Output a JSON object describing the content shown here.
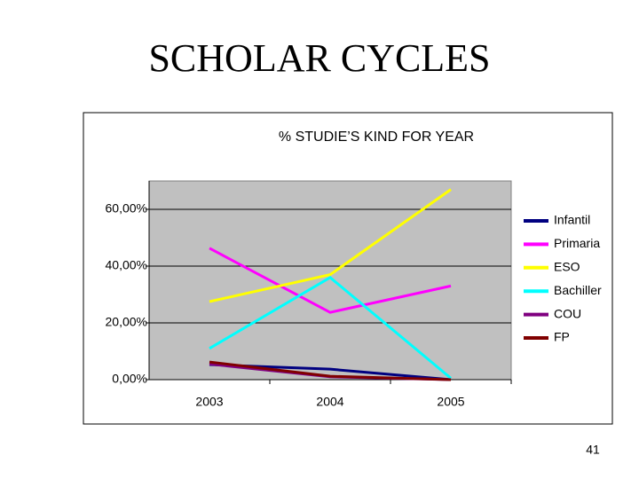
{
  "title": "SCHOLAR CYCLES",
  "page_number": "41",
  "chart_data": {
    "type": "line",
    "title": "% STUDIE’S KIND FOR YEAR",
    "categories": [
      "2003",
      "2004",
      "2005"
    ],
    "series": [
      {
        "name": "Infantil",
        "color": "#000080",
        "values": [
          5.3,
          3.7,
          0
        ]
      },
      {
        "name": "Primaria",
        "color": "#ff00ff",
        "values": [
          46.3,
          23.7,
          33
        ]
      },
      {
        "name": "ESO",
        "color": "#ffff00",
        "values": [
          27.5,
          37,
          67
        ]
      },
      {
        "name": "Bachiller",
        "color": "#00ffff",
        "values": [
          11,
          36,
          0.5
        ]
      },
      {
        "name": "COU",
        "color": "#800080",
        "values": [
          5.5,
          1,
          0
        ]
      },
      {
        "name": "FP",
        "color": "#800000",
        "values": [
          6.2,
          1.2,
          0
        ]
      }
    ],
    "ylim": [
      0,
      70
    ],
    "yticks": [
      {
        "value": 0,
        "label": "0,00%"
      },
      {
        "value": 20,
        "label": "20,00%"
      },
      {
        "value": 40,
        "label": "40,00%"
      },
      {
        "value": 60,
        "label": "60,00%"
      }
    ],
    "grid": true,
    "legend": "right",
    "plot_background": "#c0c0c0"
  }
}
